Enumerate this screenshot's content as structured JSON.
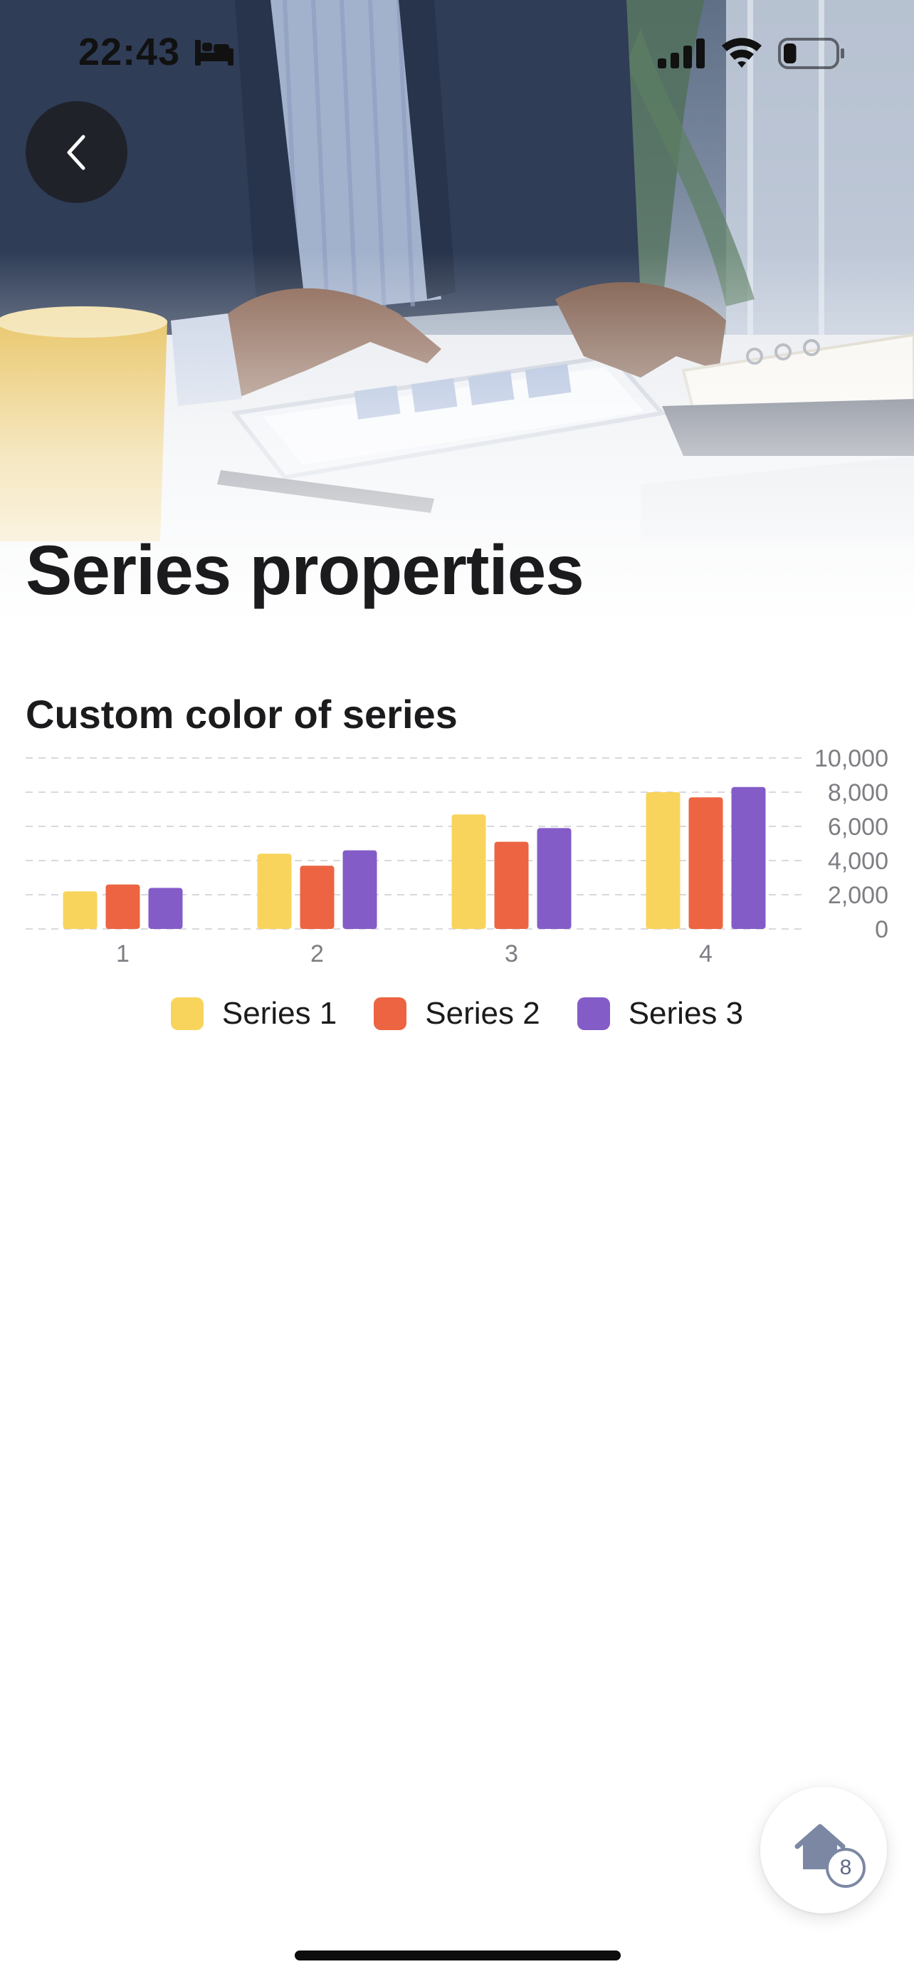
{
  "status_bar": {
    "time": "22:43",
    "sleep_icon": "bed-icon",
    "signal_icon": "cellular-signal-icon",
    "wifi_icon": "wifi-icon",
    "battery_icon": "battery-low-icon",
    "battery_level": 0.25
  },
  "header": {
    "back_icon": "chevron-left-icon",
    "title": "Series properties",
    "background": "office-desk-tablet-photo"
  },
  "section": {
    "title": "Custom color of series"
  },
  "chart_data": {
    "type": "bar",
    "title": "Custom color of series",
    "categories": [
      "1",
      "2",
      "3",
      "4"
    ],
    "series": [
      {
        "name": "Series 1",
        "color": "#F9D45C",
        "values": [
          2200,
          4400,
          6700,
          8000
        ]
      },
      {
        "name": "Series 2",
        "color": "#EC6442",
        "values": [
          2600,
          3700,
          5100,
          7700
        ]
      },
      {
        "name": "Series 3",
        "color": "#835CC8",
        "values": [
          2400,
          4600,
          5900,
          8300
        ]
      }
    ],
    "y_ticks": [
      "10,000",
      "8,000",
      "6,000",
      "4,000",
      "2,000",
      "0"
    ],
    "ylim": [
      0,
      10000
    ],
    "y_axis_position": "right",
    "grid": true,
    "grid_style": "dashed",
    "legend_position": "bottom"
  },
  "fab": {
    "icon": "home-icon",
    "badge": "8"
  }
}
